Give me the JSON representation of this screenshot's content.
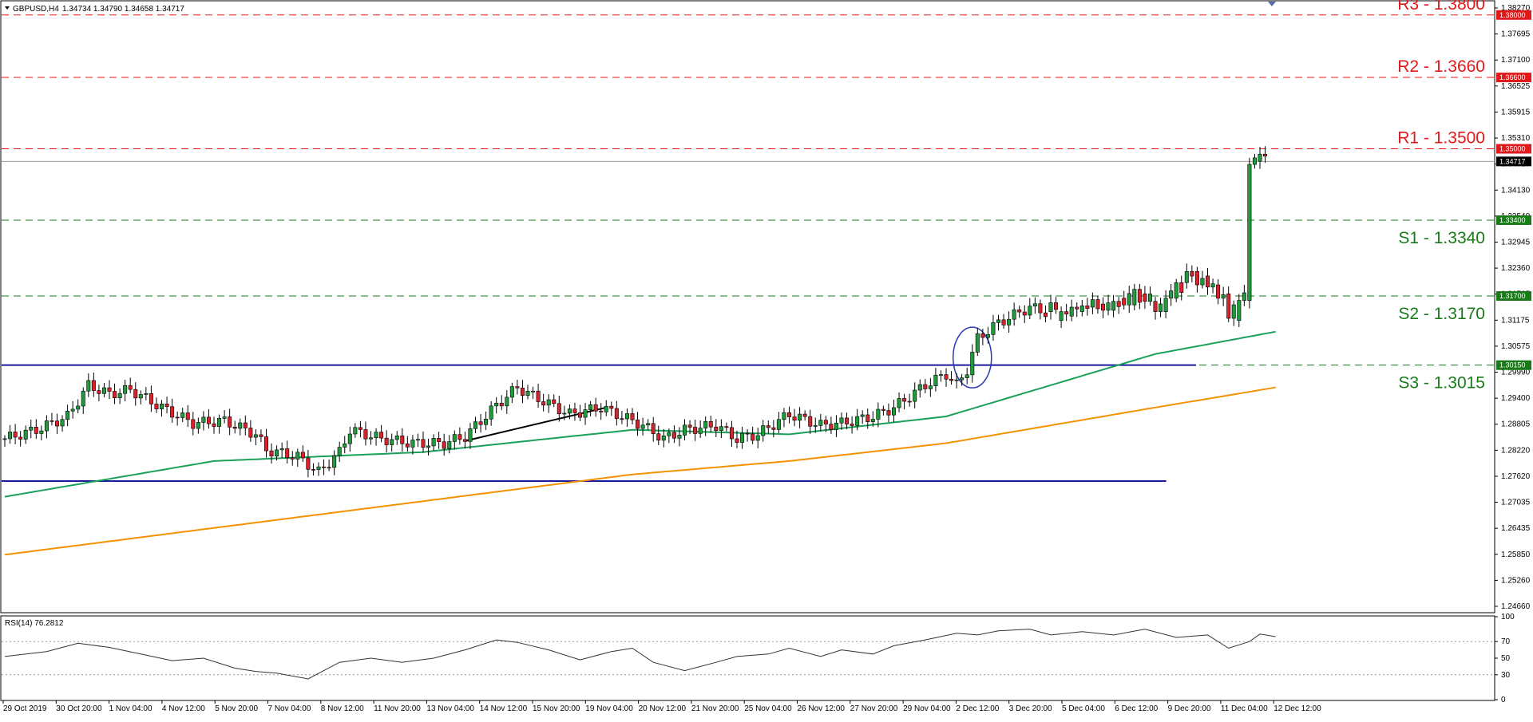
{
  "header": {
    "symbol": "GBPUSD,H4",
    "ohlc": "1.34734 1.34790 1.34658 1.34717",
    "rsi_label": "RSI(14) 76.2812"
  },
  "colors": {
    "resistance": "#e0191b",
    "support": "#1a7a1a",
    "blue_line": "#1a1a9c",
    "ma_fast": "#1aa05a",
    "ma_slow": "#f39200",
    "bull": "#1e9c3c",
    "bear": "#d9222a",
    "rsi_line": "#333333"
  },
  "chart_data": [
    {
      "type": "candlestick",
      "title": "GBPUSD,H4",
      "ylim": [
        1.246,
        1.383
      ],
      "y_ticks": [
        "1.38270",
        "1.37695",
        "1.37100",
        "1.36525",
        "1.35915",
        "1.35310",
        "1.34717",
        "1.34130",
        "1.33540",
        "1.32945",
        "1.32360",
        "1.31765",
        "1.31175",
        "1.30575",
        "1.29990",
        "1.29400",
        "1.28805",
        "1.28220",
        "1.27620",
        "1.27035",
        "1.26435",
        "1.25850",
        "1.25260",
        "1.24660"
      ],
      "x_ticks": [
        "29 Oct 2019",
        "30 Oct 20:00",
        "1 Nov 04:00",
        "4 Nov 12:00",
        "5 Nov 20:00",
        "7 Nov 04:00",
        "8 Nov 12:00",
        "11 Nov 20:00",
        "13 Nov 04:00",
        "14 Nov 12:00",
        "15 Nov 20:00",
        "19 Nov 04:00",
        "20 Nov 12:00",
        "21 Nov 20:00",
        "25 Nov 04:00",
        "26 Nov 12:00",
        "27 Nov 20:00",
        "29 Nov 04:00",
        "2 Dec 12:00",
        "3 Dec 20:00",
        "5 Dec 04:00",
        "6 Dec 12:00",
        "9 Dec 20:00",
        "11 Dec 04:00",
        "12 Dec 12:00"
      ],
      "close_path": [
        [
          0,
          1.285
        ],
        [
          6,
          1.287
        ],
        [
          12,
          1.29
        ],
        [
          16,
          1.297
        ],
        [
          20,
          1.295
        ],
        [
          24,
          1.296
        ],
        [
          30,
          1.292
        ],
        [
          36,
          1.2885
        ],
        [
          42,
          1.289
        ],
        [
          48,
          1.286
        ],
        [
          50,
          1.2825
        ],
        [
          56,
          1.281
        ],
        [
          60,
          1.2775
        ],
        [
          64,
          1.282
        ],
        [
          66,
          1.287
        ],
        [
          72,
          1.285
        ],
        [
          78,
          1.284
        ],
        [
          84,
          1.284
        ],
        [
          88,
          1.2855
        ],
        [
          94,
          1.2925
        ],
        [
          98,
          1.2965
        ],
        [
          102,
          1.294
        ],
        [
          108,
          1.2905
        ],
        [
          114,
          1.292
        ],
        [
          118,
          1.29
        ],
        [
          122,
          1.288
        ],
        [
          126,
          1.285
        ],
        [
          130,
          1.287
        ],
        [
          136,
          1.288
        ],
        [
          140,
          1.285
        ],
        [
          144,
          1.286
        ],
        [
          150,
          1.2905
        ],
        [
          156,
          1.288
        ],
        [
          160,
          1.2885
        ],
        [
          166,
          1.29
        ],
        [
          170,
          1.292
        ],
        [
          176,
          1.297
        ],
        [
          180,
          1.2995
        ],
        [
          182,
          1.297
        ],
        [
          184,
          1.3005
        ],
        [
          186,
          1.3075
        ],
        [
          190,
          1.311
        ],
        [
          196,
          1.3145
        ],
        [
          200,
          1.313
        ],
        [
          206,
          1.314
        ],
        [
          212,
          1.315
        ],
        [
          216,
          1.317
        ],
        [
          220,
          1.316
        ],
        [
          224,
          1.3175
        ],
        [
          228,
          1.322
        ],
        [
          232,
          1.319
        ],
        [
          234,
          1.315
        ],
        [
          238,
          1.3175
        ],
        [
          239,
          1.349
        ],
        [
          241,
          1.3472
        ]
      ],
      "candles": [
        [
          200,
          1.3135,
          1.3155
        ],
        [
          202,
          1.3115,
          1.3135
        ],
        [
          204,
          1.3125,
          1.3145
        ],
        [
          206,
          1.3135,
          1.3148
        ],
        [
          208,
          1.3145,
          1.3162
        ],
        [
          210,
          1.3152,
          1.3138
        ],
        [
          212,
          1.3138,
          1.3158
        ],
        [
          214,
          1.3165,
          1.315
        ],
        [
          216,
          1.315,
          1.3185
        ],
        [
          218,
          1.3175,
          1.3158
        ],
        [
          220,
          1.3158,
          1.3135
        ],
        [
          222,
          1.3135,
          1.3165
        ],
        [
          224,
          1.3165,
          1.32
        ],
        [
          226,
          1.32,
          1.3225
        ],
        [
          228,
          1.3225,
          1.3195
        ],
        [
          230,
          1.3215,
          1.319
        ],
        [
          232,
          1.3195,
          1.3165
        ],
        [
          234,
          1.3175,
          1.312
        ],
        [
          236,
          1.3115,
          1.316
        ],
        [
          238,
          1.316,
          1.3465
        ],
        [
          240,
          1.3472,
          1.3488
        ],
        [
          242,
          1.3478,
          1.3465
        ]
      ],
      "ma_fast": [
        [
          0,
          1.272
        ],
        [
          40,
          1.28
        ],
        [
          80,
          1.282
        ],
        [
          120,
          1.287
        ],
        [
          150,
          1.286
        ],
        [
          180,
          1.29
        ],
        [
          200,
          1.297
        ],
        [
          220,
          1.304
        ],
        [
          243,
          1.309
        ]
      ],
      "ma_slow": [
        [
          0,
          1.259
        ],
        [
          40,
          1.265
        ],
        [
          80,
          1.271
        ],
        [
          120,
          1.277
        ],
        [
          150,
          1.28
        ],
        [
          180,
          1.284
        ],
        [
          200,
          1.288
        ],
        [
          220,
          1.292
        ],
        [
          243,
          1.2965
        ]
      ],
      "levels": [
        {
          "label": "R3 - 1.3800",
          "value": 1.38,
          "tag": "1.38000",
          "kind": "resistance"
        },
        {
          "label": "R2 - 1.3660",
          "value": 1.366,
          "tag": "1.36600",
          "kind": "resistance"
        },
        {
          "label": "R1 - 1.3500",
          "value": 1.35,
          "tag": "1.35000",
          "kind": "resistance"
        },
        {
          "label": "S1 - 1.3340",
          "value": 1.334,
          "tag": "1.33400",
          "kind": "support"
        },
        {
          "label": "S2 - 1.3170",
          "value": 1.317,
          "tag": "1.31700",
          "kind": "support"
        },
        {
          "label": "S3 - 1.3015",
          "value": 1.3015,
          "tag": "1.30150",
          "kind": "support"
        }
      ],
      "price_tag": "1.34717",
      "horizontal_lines": [
        {
          "value": 1.3015,
          "from": 0,
          "to": 0.8
        },
        {
          "value": 1.2755,
          "from": 0,
          "to": 0.78
        }
      ],
      "trendline": [
        [
          88,
          1.2845
        ],
        [
          115,
          1.292
        ]
      ]
    },
    {
      "type": "line",
      "title": "RSI(14) 76.2812",
      "ylim": [
        0,
        100
      ],
      "y_ticks": [
        "100",
        "70",
        "50",
        "30",
        "0"
      ],
      "values": [
        [
          0,
          52
        ],
        [
          8,
          58
        ],
        [
          14,
          68
        ],
        [
          20,
          63
        ],
        [
          26,
          55
        ],
        [
          32,
          47
        ],
        [
          38,
          50
        ],
        [
          44,
          38
        ],
        [
          48,
          34
        ],
        [
          52,
          32
        ],
        [
          58,
          25
        ],
        [
          64,
          45
        ],
        [
          70,
          50
        ],
        [
          76,
          45
        ],
        [
          82,
          50
        ],
        [
          88,
          60
        ],
        [
          94,
          72
        ],
        [
          98,
          69
        ],
        [
          104,
          60
        ],
        [
          110,
          48
        ],
        [
          116,
          58
        ],
        [
          120,
          62
        ],
        [
          124,
          45
        ],
        [
          130,
          35
        ],
        [
          136,
          45
        ],
        [
          140,
          52
        ],
        [
          146,
          55
        ],
        [
          150,
          62
        ],
        [
          156,
          52
        ],
        [
          160,
          60
        ],
        [
          166,
          55
        ],
        [
          170,
          65
        ],
        [
          176,
          72
        ],
        [
          182,
          80
        ],
        [
          186,
          78
        ],
        [
          190,
          83
        ],
        [
          196,
          85
        ],
        [
          200,
          78
        ],
        [
          206,
          82
        ],
        [
          212,
          78
        ],
        [
          218,
          85
        ],
        [
          224,
          75
        ],
        [
          230,
          78
        ],
        [
          234,
          62
        ],
        [
          238,
          70
        ],
        [
          240,
          79
        ],
        [
          243,
          76
        ]
      ]
    }
  ]
}
